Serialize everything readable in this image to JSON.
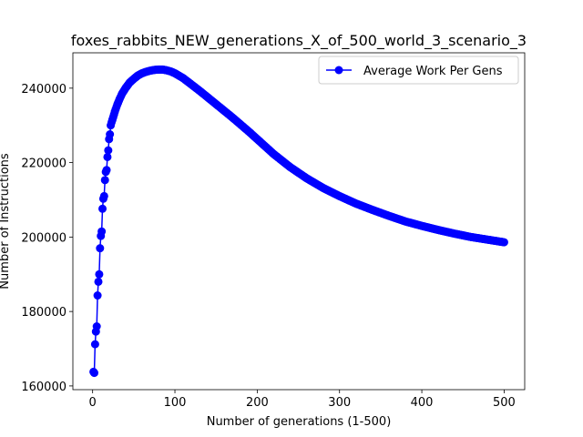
{
  "chart_data": {
    "type": "line",
    "title": "foxes_rabbits_NEW_generations_X_of_500_world_3_scenario_3",
    "xlabel": "Number of generations (1-500)",
    "ylabel": "Number of Instructions",
    "xlim": [
      -24,
      525
    ],
    "ylim": [
      159000,
      249500
    ],
    "xticks": [
      0,
      100,
      200,
      300,
      400,
      500
    ],
    "yticks": [
      160000,
      180000,
      200000,
      220000,
      240000
    ],
    "grid": false,
    "legend_position": "upper right",
    "series": [
      {
        "name": "Average Work Per Gens",
        "color": "#0000ff",
        "marker": "circle",
        "keypoints": [
          [
            1,
            163800
          ],
          [
            2,
            163500
          ],
          [
            3,
            171200
          ],
          [
            4,
            174600
          ],
          [
            5,
            176000
          ],
          [
            6,
            184300
          ],
          [
            7,
            188000
          ],
          [
            8,
            190000
          ],
          [
            9,
            197000
          ],
          [
            10,
            200300
          ],
          [
            11,
            201500
          ],
          [
            12,
            207600
          ],
          [
            13,
            210300
          ],
          [
            14,
            211000
          ],
          [
            15,
            215300
          ],
          [
            16,
            217500
          ],
          [
            17,
            218000
          ],
          [
            18,
            221500
          ],
          [
            19,
            223300
          ],
          [
            20,
            226300
          ],
          [
            21,
            227600
          ],
          [
            22,
            230000
          ],
          [
            23,
            230800
          ],
          [
            25,
            232200
          ],
          [
            27,
            233700
          ],
          [
            30,
            235600
          ],
          [
            33,
            237200
          ],
          [
            36,
            238600
          ],
          [
            40,
            240000
          ],
          [
            45,
            241500
          ],
          [
            50,
            242500
          ],
          [
            55,
            243400
          ],
          [
            60,
            244000
          ],
          [
            65,
            244400
          ],
          [
            70,
            244700
          ],
          [
            75,
            244900
          ],
          [
            80,
            245000
          ],
          [
            85,
            245000
          ],
          [
            90,
            244800
          ],
          [
            95,
            244500
          ],
          [
            100,
            244000
          ],
          [
            110,
            242700
          ],
          [
            120,
            241000
          ],
          [
            130,
            239300
          ],
          [
            140,
            237500
          ],
          [
            150,
            235700
          ],
          [
            160,
            233900
          ],
          [
            170,
            232100
          ],
          [
            180,
            230200
          ],
          [
            190,
            228300
          ],
          [
            200,
            226300
          ],
          [
            220,
            222300
          ],
          [
            240,
            218800
          ],
          [
            260,
            215800
          ],
          [
            280,
            213200
          ],
          [
            300,
            211000
          ],
          [
            320,
            209000
          ],
          [
            340,
            207300
          ],
          [
            360,
            205700
          ],
          [
            380,
            204200
          ],
          [
            400,
            203000
          ],
          [
            420,
            201900
          ],
          [
            440,
            200900
          ],
          [
            460,
            200000
          ],
          [
            480,
            199300
          ],
          [
            500,
            198600
          ]
        ]
      }
    ]
  }
}
